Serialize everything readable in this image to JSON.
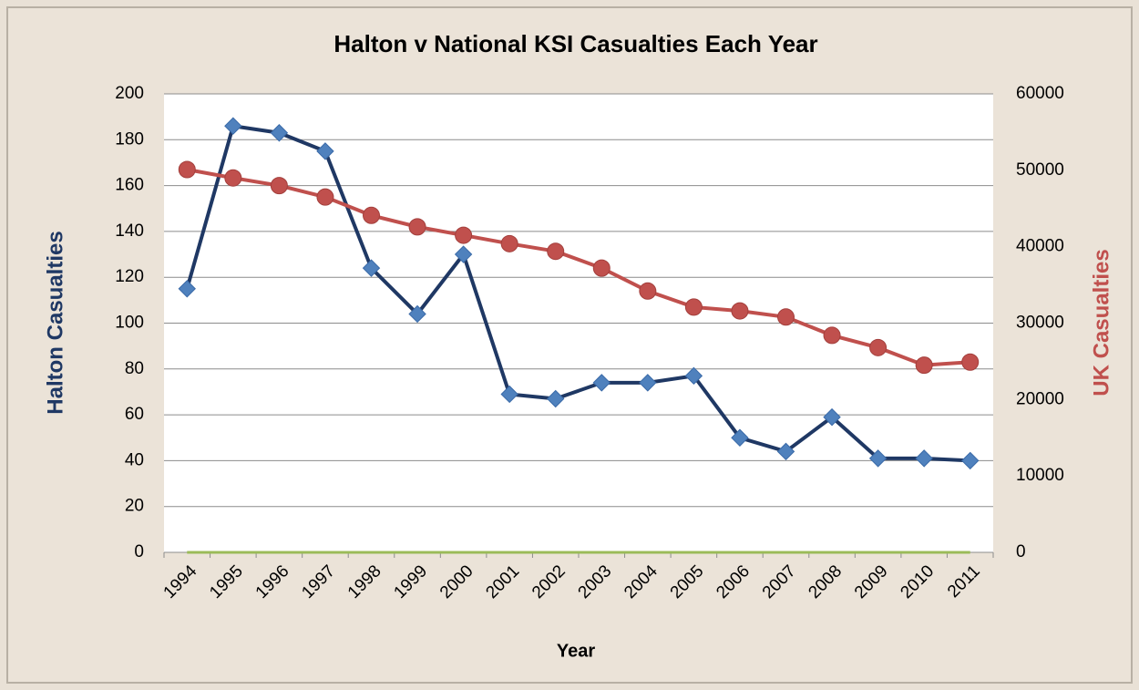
{
  "chart_data": {
    "type": "line",
    "title": "Halton v National KSI Casualties Each Year",
    "xlabel": "Year",
    "ylabel": "Halton Casualties",
    "y2label": "UK Casualties",
    "categories": [
      "1994",
      "1995",
      "1996",
      "1997",
      "1998",
      "1999",
      "2000",
      "2001",
      "2002",
      "2003",
      "2004",
      "2005",
      "2006",
      "2007",
      "2008",
      "2009",
      "2010",
      "2011"
    ],
    "series": [
      {
        "name": "Halton",
        "color": "#1f3864",
        "marker_color": "#4f81bd",
        "marker": "diamond",
        "values": [
          115,
          186,
          183,
          175,
          124,
          104,
          130,
          69,
          67,
          74,
          74,
          77,
          50,
          44,
          59,
          41,
          41,
          40
        ]
      },
      {
        "name": "UK",
        "color": "#c0504d",
        "marker_color": "#c0504d",
        "marker": "circle",
        "axis": "y2",
        "values": [
          50100,
          49000,
          48000,
          46500,
          44100,
          42600,
          41500,
          40400,
          39400,
          37200,
          34200,
          32100,
          31600,
          30800,
          28400,
          26800,
          24500,
          24900
        ]
      },
      {
        "color": "#9bbb59",
        "values": [
          0,
          0,
          0,
          0,
          0,
          0,
          0,
          0,
          0,
          0,
          0,
          0,
          0,
          0,
          0,
          0,
          0,
          0
        ]
      }
    ],
    "ylim": [
      0,
      200
    ],
    "yticks": [
      0,
      20,
      40,
      60,
      80,
      100,
      120,
      140,
      160,
      180,
      200
    ],
    "y2lim": [
      0,
      60000
    ],
    "y2ticks": [
      0,
      10000,
      20000,
      30000,
      40000,
      50000,
      60000
    ],
    "grid": true
  }
}
